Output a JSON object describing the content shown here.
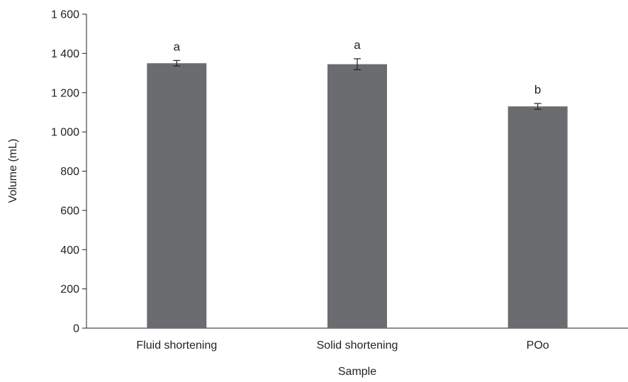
{
  "chart_data": {
    "type": "bar",
    "title": "",
    "xlabel": "Sample",
    "ylabel": "Volume (mL)",
    "categories": [
      "Fluid shortening",
      "Solid shortening",
      "POo"
    ],
    "values": [
      1350,
      1345,
      1130
    ],
    "error": [
      14,
      28,
      15
    ],
    "significance": [
      "a",
      "a",
      "b"
    ],
    "ylim": [
      0,
      1600
    ],
    "yticks": [
      0,
      200,
      400,
      600,
      800,
      1000,
      1200,
      1400,
      1600
    ],
    "ytick_labels": [
      "0",
      "200",
      "400",
      "600",
      "800",
      "1 000",
      "1 200",
      "1 400",
      "1 600"
    ],
    "grid": false,
    "legend": "none",
    "bar_color": "#6b6c6f"
  }
}
